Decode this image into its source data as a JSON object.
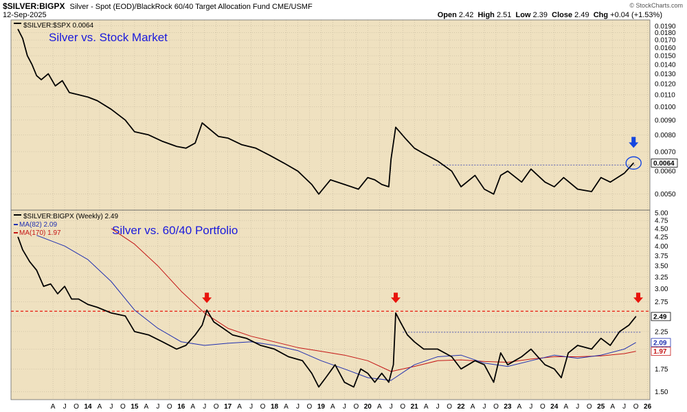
{
  "header": {
    "symbol": "$SILVER:BIGPX",
    "description": "Silver - Spot (EOD)/BlackRock 60/40 Target Allocation Fund CME/USMF",
    "date": "12-Sep-2025",
    "open_label": "Open",
    "open": "2.42",
    "high_label": "High",
    "high": "2.51",
    "low_label": "Low",
    "low": "2.39",
    "close_label": "Close",
    "close": "2.49",
    "chg_label": "Chg",
    "chg": "+0.04 (+1.53%)",
    "watermark": "© StockCharts.com"
  },
  "colors": {
    "panel_bg": "#efe1c0",
    "grid": "#b8ad94",
    "price": "#000000",
    "ma82": "#1f2fb0",
    "ma170": "#c41414",
    "annotation": "#1a1adc",
    "red_marker": "#e8140c",
    "blue_marker": "#1446e0"
  },
  "chart_data": [
    {
      "type": "line",
      "legend": "$SILVER:$SPX 0.0064",
      "annotation": "Silver vs. Stock Market",
      "y_scale": "log",
      "ylim": [
        0.0045,
        0.0195
      ],
      "yticks": [
        "0.0190",
        "0.0180",
        "0.0170",
        "0.0160",
        "0.0150",
        "0.0140",
        "0.0130",
        "0.0120",
        "0.0110",
        "0.0100",
        "0.0090",
        "0.0080",
        "0.0070",
        "0.0060",
        "0.0050"
      ],
      "last_value_label": "0.0064",
      "reference_level": 0.0063,
      "circle_marker": {
        "x": 2025.7,
        "y": 0.0064
      },
      "arrow_marker": {
        "x": 2025.7,
        "direction": "down"
      },
      "x": [
        2012.5,
        2012.6,
        2012.7,
        2012.8,
        2012.9,
        2013.0,
        2013.15,
        2013.3,
        2013.45,
        2013.6,
        2013.8,
        2014.0,
        2014.2,
        2014.5,
        2014.8,
        2015.0,
        2015.3,
        2015.6,
        2015.9,
        2016.1,
        2016.3,
        2016.45,
        2016.6,
        2016.8,
        2017.0,
        2017.3,
        2017.6,
        2017.9,
        2018.2,
        2018.5,
        2018.8,
        2018.95,
        2019.2,
        2019.5,
        2019.8,
        2020.0,
        2020.15,
        2020.3,
        2020.45,
        2020.5,
        2020.6,
        2020.8,
        2021.0,
        2021.2,
        2021.5,
        2021.8,
        2022.0,
        2022.3,
        2022.5,
        2022.7,
        2022.85,
        2023.0,
        2023.3,
        2023.5,
        2023.8,
        2024.0,
        2024.2,
        2024.5,
        2024.8,
        2025.0,
        2025.2,
        2025.5,
        2025.7
      ],
      "values": [
        0.0185,
        0.0172,
        0.015,
        0.014,
        0.0128,
        0.0124,
        0.013,
        0.0118,
        0.0123,
        0.0112,
        0.011,
        0.0108,
        0.0105,
        0.0098,
        0.009,
        0.0082,
        0.008,
        0.0076,
        0.0073,
        0.0072,
        0.0075,
        0.0088,
        0.0084,
        0.0079,
        0.0078,
        0.0074,
        0.0072,
        0.0068,
        0.0064,
        0.006,
        0.0054,
        0.005,
        0.0056,
        0.0054,
        0.0052,
        0.0057,
        0.0056,
        0.0054,
        0.0053,
        0.0066,
        0.0085,
        0.0078,
        0.0072,
        0.0069,
        0.0065,
        0.006,
        0.0053,
        0.0058,
        0.0052,
        0.005,
        0.0058,
        0.006,
        0.0055,
        0.0061,
        0.0055,
        0.0053,
        0.0057,
        0.0052,
        0.0051,
        0.0057,
        0.0055,
        0.0059,
        0.0064
      ]
    },
    {
      "type": "line",
      "legend": "$SILVER:BIGPX (Weekly) 2.49",
      "annotation": "Silver vs. 60/40 Portfolio",
      "y_scale": "log",
      "ylim": [
        1.45,
        5.0
      ],
      "yticks": [
        "5.00",
        "4.75",
        "4.50",
        "4.25",
        "4.00",
        "3.75",
        "3.50",
        "3.25",
        "3.00",
        "2.75",
        "2.50",
        "2.25",
        "2.00",
        "1.75",
        "1.50"
      ],
      "last_value_label": "2.49",
      "ma_value_labels": [
        "2.09",
        "1.97"
      ],
      "resistance_level": 2.58,
      "support_level": 2.24,
      "red_arrows_x": [
        2016.55,
        2020.6,
        2025.8
      ],
      "series": [
        {
          "name": "$SILVER:BIGPX",
          "x": [
            2012.5,
            2012.6,
            2012.75,
            2012.9,
            2013.05,
            2013.2,
            2013.35,
            2013.5,
            2013.65,
            2013.8,
            2014.0,
            2014.2,
            2014.5,
            2014.8,
            2015.0,
            2015.3,
            2015.6,
            2015.9,
            2016.1,
            2016.3,
            2016.45,
            2016.55,
            2016.7,
            2016.9,
            2017.1,
            2017.4,
            2017.7,
            2018.0,
            2018.3,
            2018.6,
            2018.8,
            2018.95,
            2019.1,
            2019.3,
            2019.5,
            2019.7,
            2019.85,
            2020.0,
            2020.15,
            2020.3,
            2020.45,
            2020.55,
            2020.6,
            2020.7,
            2020.85,
            2021.0,
            2021.2,
            2021.5,
            2021.8,
            2022.0,
            2022.3,
            2022.5,
            2022.7,
            2022.85,
            2023.0,
            2023.3,
            2023.5,
            2023.8,
            2024.0,
            2024.15,
            2024.3,
            2024.5,
            2024.8,
            2025.0,
            2025.2,
            2025.4,
            2025.6,
            2025.75
          ],
          "values": [
            4.25,
            3.9,
            3.6,
            3.4,
            3.05,
            3.1,
            2.9,
            3.05,
            2.8,
            2.8,
            2.7,
            2.65,
            2.55,
            2.5,
            2.25,
            2.2,
            2.1,
            2.0,
            2.05,
            2.2,
            2.35,
            2.6,
            2.4,
            2.3,
            2.2,
            2.15,
            2.05,
            2.0,
            1.9,
            1.85,
            1.7,
            1.55,
            1.65,
            1.8,
            1.6,
            1.55,
            1.75,
            1.7,
            1.6,
            1.7,
            1.6,
            1.8,
            2.55,
            2.4,
            2.2,
            2.1,
            2.0,
            2.0,
            1.9,
            1.75,
            1.85,
            1.8,
            1.6,
            1.95,
            1.8,
            1.9,
            2.0,
            1.8,
            1.75,
            1.65,
            1.95,
            2.05,
            2.0,
            2.15,
            2.05,
            2.25,
            2.35,
            2.49
          ]
        },
        {
          "name": "MA(82)",
          "legend": "MA(82) 2.09",
          "x": [
            2012.9,
            2013.5,
            2014.0,
            2014.5,
            2015.0,
            2015.5,
            2016.0,
            2016.5,
            2017.0,
            2017.5,
            2018.0,
            2018.5,
            2019.0,
            2019.5,
            2020.0,
            2020.5,
            2021.0,
            2021.5,
            2022.0,
            2022.5,
            2023.0,
            2023.5,
            2024.0,
            2024.5,
            2025.0,
            2025.5,
            2025.75
          ],
          "values": [
            4.3,
            4.0,
            3.65,
            3.15,
            2.6,
            2.3,
            2.1,
            2.05,
            2.08,
            2.1,
            2.05,
            1.98,
            1.85,
            1.75,
            1.65,
            1.62,
            1.8,
            1.9,
            1.92,
            1.82,
            1.78,
            1.85,
            1.92,
            1.88,
            1.92,
            2.0,
            2.09
          ]
        },
        {
          "name": "MA(170)",
          "legend": "MA(170) 1.97",
          "x": [
            2014.5,
            2015.0,
            2015.5,
            2016.0,
            2016.5,
            2017.0,
            2017.5,
            2018.0,
            2018.5,
            2019.0,
            2019.5,
            2020.0,
            2020.5,
            2021.0,
            2021.5,
            2022.0,
            2022.5,
            2023.0,
            2023.5,
            2024.0,
            2024.5,
            2025.0,
            2025.5,
            2025.75
          ],
          "values": [
            4.5,
            4.05,
            3.5,
            2.95,
            2.55,
            2.3,
            2.18,
            2.1,
            2.02,
            1.97,
            1.92,
            1.85,
            1.72,
            1.78,
            1.85,
            1.86,
            1.84,
            1.83,
            1.87,
            1.9,
            1.9,
            1.91,
            1.94,
            1.97
          ]
        }
      ]
    }
  ],
  "x_axis": {
    "labels": [
      "A",
      "J",
      "O",
      "14",
      "A",
      "J",
      "O",
      "15",
      "A",
      "J",
      "O",
      "16",
      "A",
      "J",
      "O",
      "17",
      "A",
      "J",
      "O",
      "18",
      "A",
      "J",
      "O",
      "19",
      "A",
      "J",
      "O",
      "20",
      "A",
      "J",
      "O",
      "21",
      "A",
      "J",
      "O",
      "22",
      "A",
      "J",
      "O",
      "23",
      "A",
      "J",
      "O",
      "24",
      "A",
      "J",
      "O",
      "25",
      "A",
      "J",
      "O",
      "26"
    ]
  }
}
